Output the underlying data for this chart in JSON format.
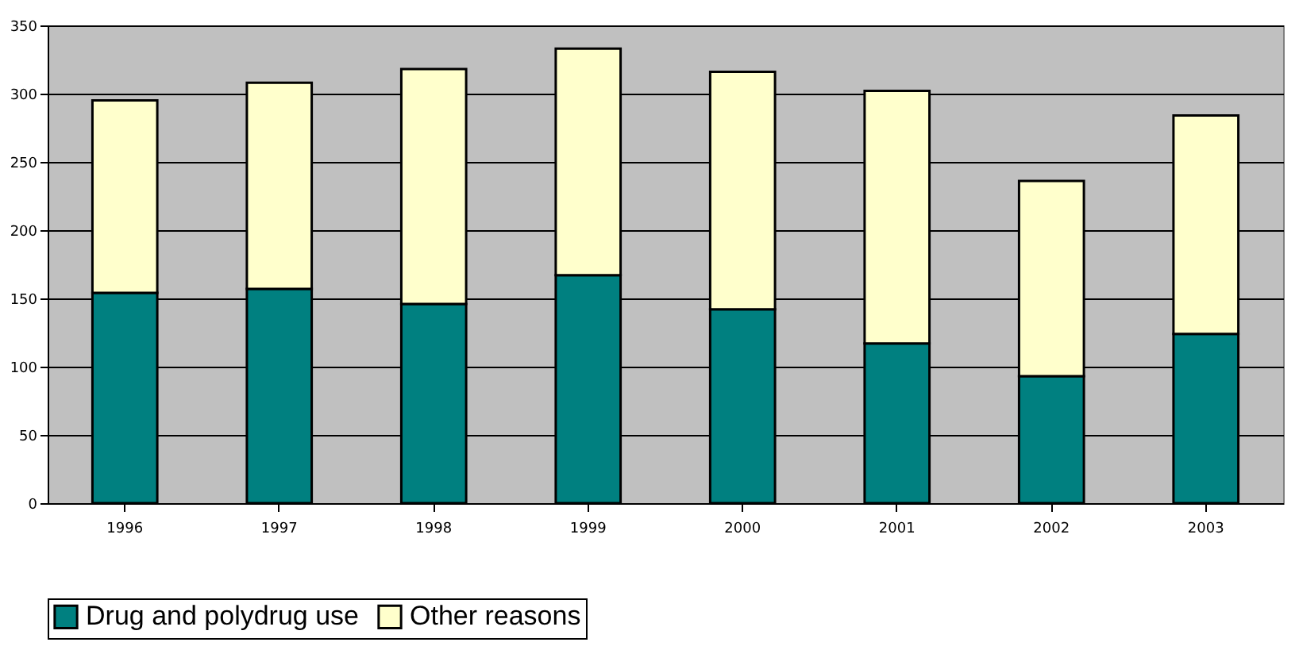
{
  "chart_data": {
    "type": "bar",
    "stacked": true,
    "categories": [
      "1996",
      "1997",
      "1998",
      "1999",
      "2000",
      "2001",
      "2002",
      "2003"
    ],
    "series": [
      {
        "name": "Drug and polydrug use",
        "color": "#008080",
        "values": [
          154,
          157,
          146,
          167,
          142,
          117,
          93,
          124
        ]
      },
      {
        "name": "Other reasons",
        "color": "#ffffcc",
        "values": [
          141,
          151,
          172,
          166,
          174,
          185,
          143,
          160
        ]
      }
    ],
    "ylim": [
      0,
      350
    ],
    "yticks": [
      0,
      50,
      100,
      150,
      200,
      250,
      300,
      350
    ],
    "grid": "y",
    "legend": "bottom"
  }
}
